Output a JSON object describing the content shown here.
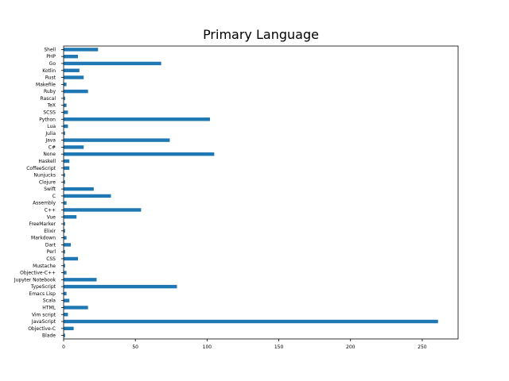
{
  "chart_data": {
    "type": "bar",
    "orientation": "horizontal",
    "title": "Primary Language",
    "xlabel": "",
    "ylabel": "",
    "xlim": [
      0,
      275
    ],
    "xticks": [
      0,
      50,
      100,
      150,
      200,
      250
    ],
    "grid": false,
    "bar_color": "#1f77b4",
    "categories": [
      "Blade",
      "Objective-C",
      "JavaScript",
      "Vim script",
      "HTML",
      "Scala",
      "Emacs Lisp",
      "TypeScript",
      "Jupyter Notebook",
      "Objective-C++",
      "Mustache",
      "CSS",
      "Perl",
      "Dart",
      "Markdown",
      "Elixir",
      "FreeMarker",
      "Vue",
      "C++",
      "Assembly",
      "C",
      "Swift",
      "Clojure",
      "Nunjucks",
      "CoffeeScript",
      "Haskell",
      "None",
      "C#",
      "Java",
      "Julia",
      "Lua",
      "Python",
      "SCSS",
      "TeX",
      "Rascal",
      "Ruby",
      "Makefile",
      "Rust",
      "Kotlin",
      "Go",
      "PHP",
      "Shell"
    ],
    "values": [
      1,
      7,
      261,
      3,
      17,
      4,
      2,
      79,
      23,
      2,
      1,
      10,
      1,
      5,
      2,
      1,
      1,
      9,
      54,
      2,
      33,
      21,
      1,
      1,
      4,
      4,
      105,
      14,
      74,
      1,
      3,
      102,
      3,
      2,
      1,
      17,
      2,
      14,
      11,
      68,
      10,
      24
    ]
  }
}
